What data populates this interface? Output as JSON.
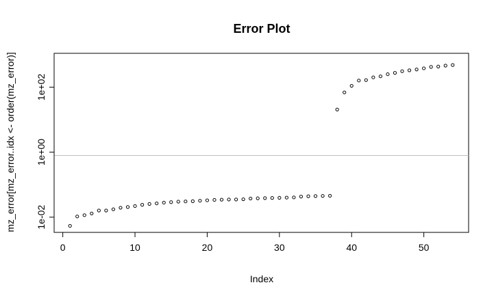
{
  "chart_data": {
    "type": "scatter",
    "title": "Error Plot",
    "xlabel": "Index",
    "ylabel": "mz_error[mz_error..idx <- order(mz_error)]",
    "x_ticks": [
      0,
      10,
      20,
      30,
      40,
      50
    ],
    "y_ticks": [
      {
        "value": 0.01,
        "label": "1e-02"
      },
      {
        "value": 1,
        "label": "1e+00"
      },
      {
        "value": 100,
        "label": "1e+02"
      }
    ],
    "y_scale": "log",
    "xlim": [
      -1.2,
      56.2
    ],
    "ylim": [
      0.0034,
      1100
    ],
    "reference_line": 0.79,
    "reference_line_color": "#bebebe",
    "point_color": "#000000",
    "point_marker": "open-circle",
    "grid": false,
    "x": [
      1,
      2,
      3,
      4,
      5,
      6,
      7,
      8,
      9,
      10,
      11,
      12,
      13,
      14,
      15,
      16,
      17,
      18,
      19,
      20,
      21,
      22,
      23,
      24,
      25,
      26,
      27,
      28,
      29,
      30,
      31,
      32,
      33,
      34,
      35,
      36,
      37,
      38,
      39,
      40,
      41,
      42,
      43,
      44,
      45,
      46,
      47,
      48,
      49,
      50,
      51,
      52,
      53,
      54
    ],
    "y": [
      0.0054,
      0.0105,
      0.0115,
      0.013,
      0.016,
      0.016,
      0.0175,
      0.0195,
      0.0205,
      0.022,
      0.024,
      0.0255,
      0.0265,
      0.028,
      0.029,
      0.03,
      0.0305,
      0.031,
      0.032,
      0.033,
      0.034,
      0.0345,
      0.035,
      0.035,
      0.0355,
      0.0375,
      0.038,
      0.0385,
      0.039,
      0.0395,
      0.04,
      0.0405,
      0.043,
      0.044,
      0.0445,
      0.045,
      0.0455,
      20.5,
      69,
      110,
      160,
      165,
      200,
      215,
      250,
      275,
      310,
      330,
      350,
      380,
      420,
      430,
      460,
      480
    ]
  }
}
